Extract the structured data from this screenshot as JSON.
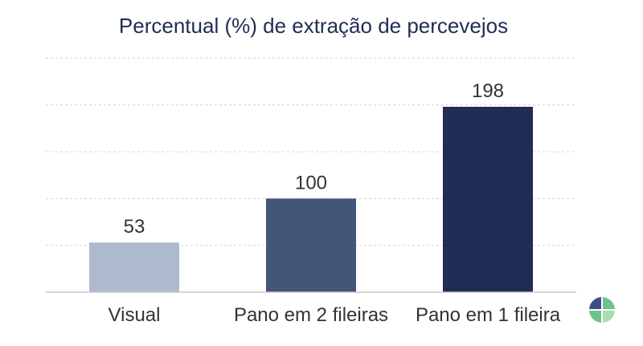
{
  "chart_data": {
    "type": "bar",
    "title": "Percentual (%) de extração de percevejos",
    "categories": [
      "Visual",
      "Pano em 2 fileiras",
      "Pano em 1 fileira"
    ],
    "values": [
      53,
      100,
      198
    ],
    "colors": [
      "#adb9cf",
      "#435578",
      "#1f2d55"
    ],
    "ylim": [
      0,
      250
    ],
    "grid": true,
    "xlabel": "",
    "ylabel": ""
  },
  "logo": {
    "icon": "pie-logo-icon",
    "colors": [
      "#3f4f86",
      "#6cc48a",
      "#a8dcb4"
    ]
  }
}
